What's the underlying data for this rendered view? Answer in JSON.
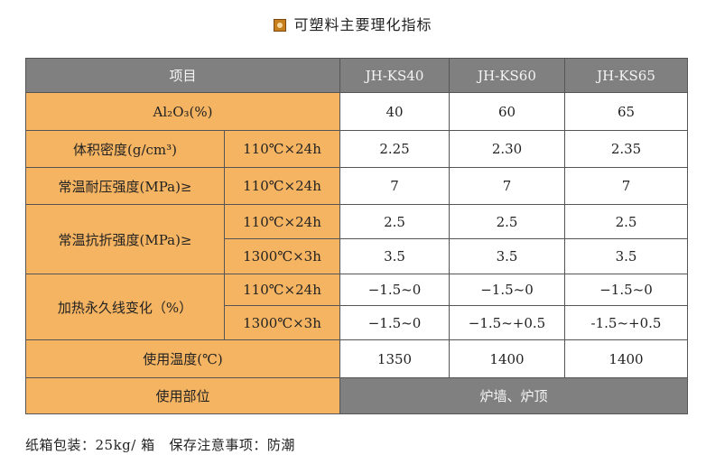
{
  "title": "可塑料主要理化指标",
  "headers": [
    "项目",
    "JH-KS40",
    "JH-KS60",
    "JH-KS65"
  ],
  "rows": {
    "al2o3": {
      "label": "Al₂O₃(%)",
      "values": [
        "40",
        "60",
        "65"
      ]
    },
    "density": {
      "label": "体积密度(g/cm³)",
      "cond": "110℃×24h",
      "values": [
        "2.25",
        "2.30",
        "2.35"
      ]
    },
    "compressive": {
      "label": "常温耐压强度(MPa)≥",
      "cond": "110℃×24h",
      "values": [
        "7",
        "7",
        "7"
      ]
    },
    "flexural": {
      "label": "常温抗折强度(MPa)≥",
      "cond1": "110℃×24h",
      "values1": [
        "2.5",
        "2.5",
        "2.5"
      ],
      "cond2": "1300℃×3h",
      "values2": [
        "3.5",
        "3.5",
        "3.5"
      ]
    },
    "linear": {
      "label": "加热永久线变化（%）",
      "cond1": "110℃×24h",
      "values1": [
        "−1.5~0",
        "−1.5~0",
        "−1.5~0"
      ],
      "cond2": "1300℃×3h",
      "values2": [
        "−1.5~0",
        "−1.5~+0.5",
        "-1.5~+0.5"
      ]
    },
    "temperature": {
      "label": "使用温度(℃)",
      "values": [
        "1350",
        "1400",
        "1400"
      ]
    },
    "usage": {
      "label": "使用部位",
      "value": "炉墙、炉顶"
    }
  },
  "footer": {
    "packaging": "纸箱包装：25kg/ 箱",
    "storage": "保存注意事项：防潮"
  }
}
